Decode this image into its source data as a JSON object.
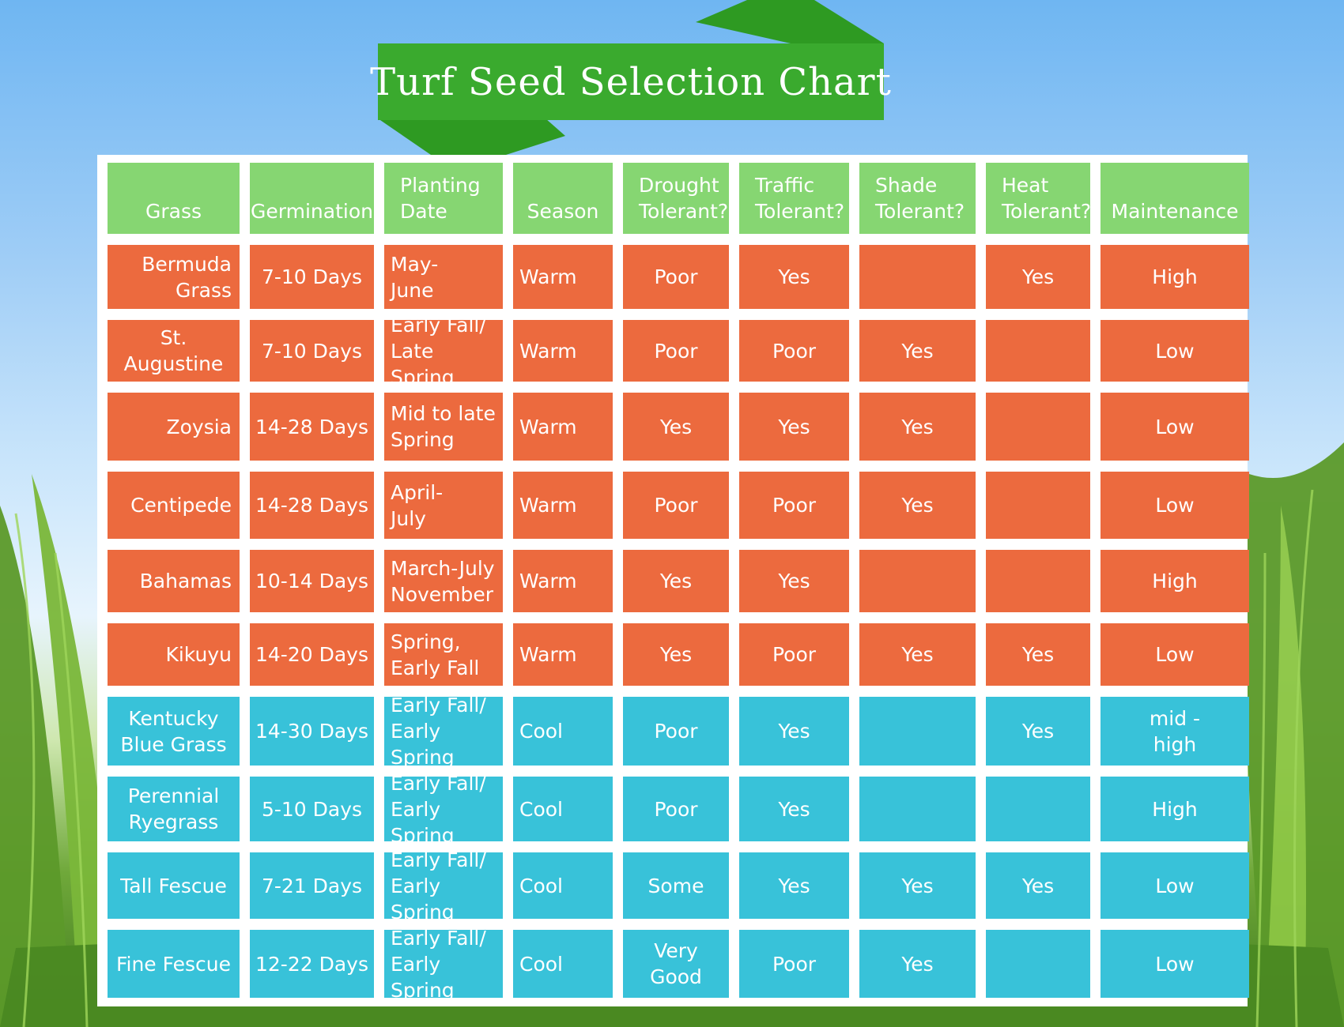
{
  "title": "Turf Seed Selection Chart",
  "colors": {
    "header": "#86d672",
    "warm": "#ec6a3e",
    "cool": "#38c2d9",
    "banner": "#3aaa2e"
  },
  "chart_data": {
    "type": "table",
    "title": "Turf Seed Selection Chart",
    "columns": [
      "Grass",
      "Germination",
      "Planting Date",
      "Season",
      "Drought Tolerant?",
      "Traffic Tolerant?",
      "Shade Tolerant?",
      "Heat Tolerant?",
      "Maintenance"
    ],
    "rows": [
      [
        "Bermuda Grass",
        "7-10 Days",
        "May-June",
        "Warm",
        "Poor",
        "Yes",
        "",
        "Yes",
        "High"
      ],
      [
        "St. Augustine",
        "7-10 Days",
        "Early Fall/ Late Spring",
        "Warm",
        "Poor",
        "Poor",
        "Yes",
        "",
        "Low"
      ],
      [
        "Zoysia",
        "14-28 Days",
        "Mid to late Spring",
        "Warm",
        "Yes",
        "Yes",
        "Yes",
        "",
        "Low"
      ],
      [
        "Centipede",
        "14-28 Days",
        "April-July",
        "Warm",
        "Poor",
        "Poor",
        "Yes",
        "",
        "Low"
      ],
      [
        "Bahamas",
        "10-14 Days",
        "March-July November",
        "Warm",
        "Yes",
        "Yes",
        "",
        "",
        "High"
      ],
      [
        "Kikuyu",
        "14-20 Days",
        "Spring, Early Fall",
        "Warm",
        "Yes",
        "Poor",
        "Yes",
        "Yes",
        "Low"
      ],
      [
        "Kentucky Blue Grass",
        "14-30 Days",
        "Early Fall/ Early Spring",
        "Cool",
        "Poor",
        "Yes",
        "",
        "Yes",
        "mid - high"
      ],
      [
        "Perennial Ryegrass",
        "5-10 Days",
        "Early Fall/ Early Spring",
        "Cool",
        "Poor",
        "Yes",
        "",
        "",
        "High"
      ],
      [
        "Tall Fescue",
        "7-21 Days",
        "Early Fall/ Early Spring",
        "Cool",
        "Some",
        "Yes",
        "Yes",
        "Yes",
        "Low"
      ],
      [
        "Fine Fescue",
        "12-22 Days",
        "Early Fall/ Early Spring",
        "Cool",
        "Very Good",
        "Poor",
        "Yes",
        "",
        "Low"
      ]
    ]
  }
}
